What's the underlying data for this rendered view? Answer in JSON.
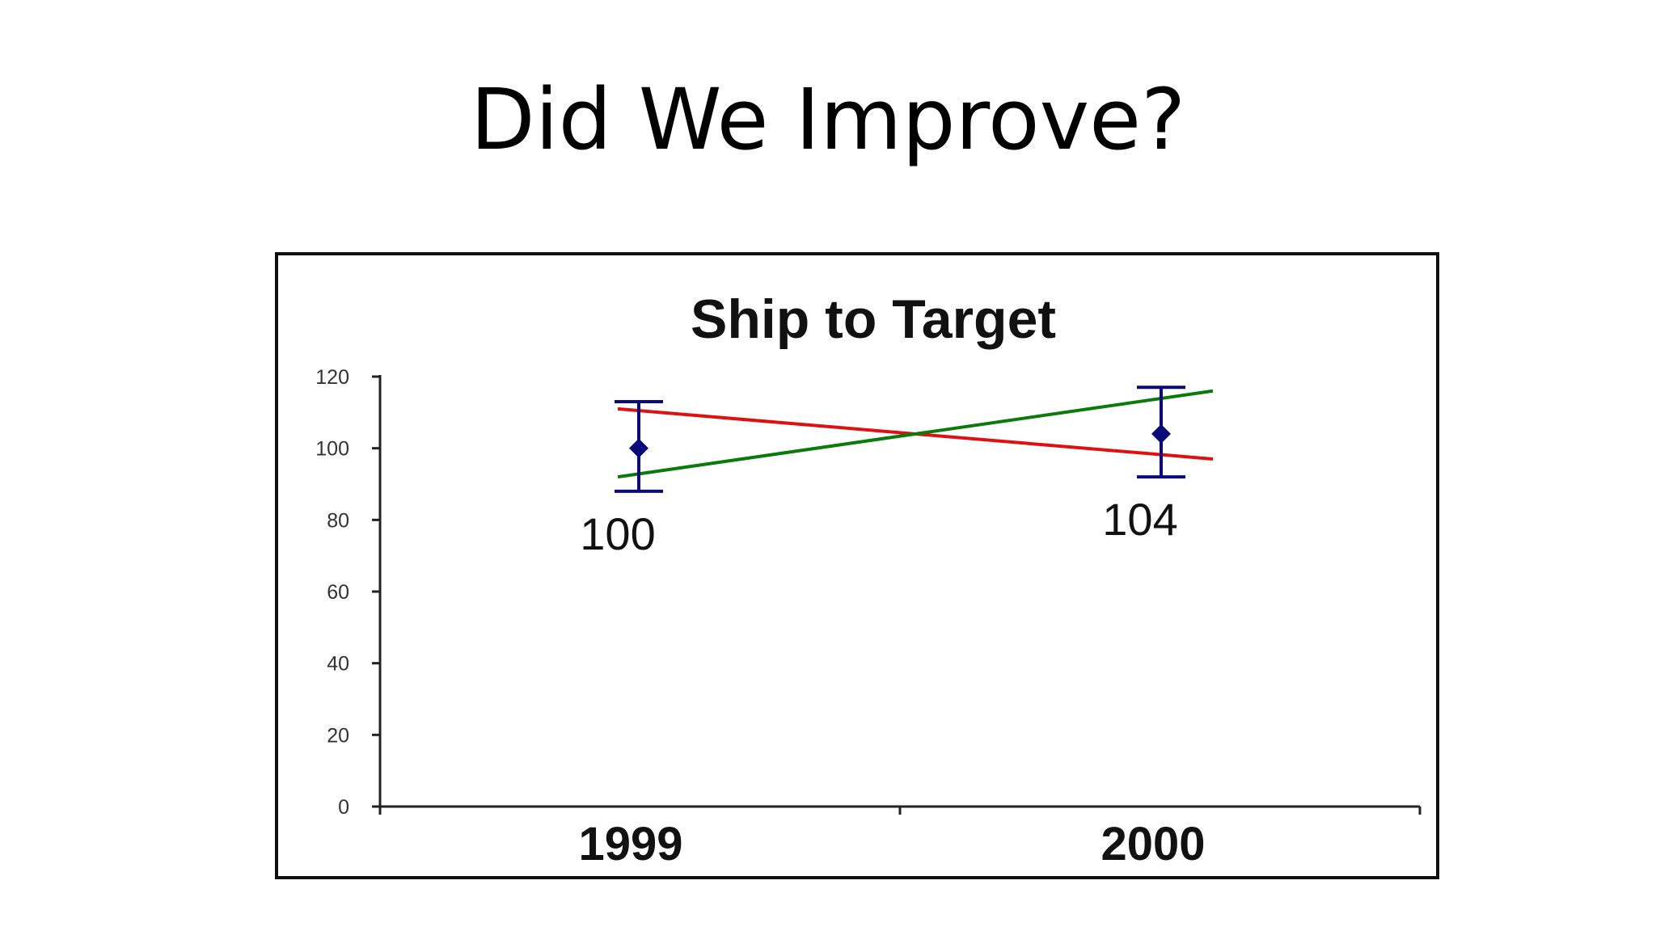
{
  "slide": {
    "title": "Did We Improve?"
  },
  "chart_data": {
    "type": "scatter",
    "title": "Ship to Target",
    "xlabel": "",
    "ylabel": "",
    "categories": [
      "1999",
      "2000"
    ],
    "ylim": [
      0,
      120
    ],
    "yticks": [
      0,
      20,
      40,
      60,
      80,
      100,
      120
    ],
    "grid": false,
    "legend": "none",
    "series": [
      {
        "kind": "point-with-error-bars",
        "values": [
          100,
          104
        ],
        "error_upper": [
          113,
          117
        ],
        "error_lower": [
          88,
          92
        ],
        "data_labels": [
          "100",
          "104"
        ],
        "color": "#0a0a7a"
      }
    ],
    "lines": [
      {
        "color": "#e01010",
        "from": 111,
        "to": 97
      },
      {
        "color": "#0a7a0a",
        "from": 92,
        "to": 116
      }
    ]
  }
}
